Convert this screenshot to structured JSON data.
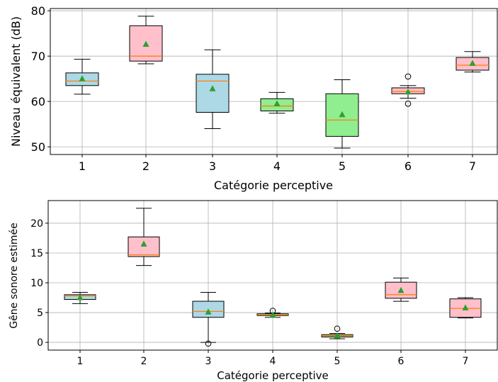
{
  "chart_data": [
    {
      "type": "box",
      "xlabel": "Catégorie perceptive",
      "ylabel": "Niveau équivalent (dB)",
      "categories": [
        "1",
        "2",
        "3",
        "4",
        "5",
        "6",
        "7"
      ],
      "ylim": [
        48.3,
        80.5
      ],
      "yticks": [
        50,
        60,
        70,
        80
      ],
      "ytick_labels": [
        "50",
        "60",
        "70",
        "80"
      ],
      "grid": true,
      "series": [
        {
          "whisker_low": 61.6,
          "q1": 63.5,
          "median": 64.5,
          "q3": 66.3,
          "whisker_high": 69.3,
          "mean": 65.0,
          "outliers": [],
          "fill": "#add8e6"
        },
        {
          "whisker_low": 68.3,
          "q1": 68.9,
          "median": 70.0,
          "q3": 76.7,
          "whisker_high": 78.8,
          "mean": 72.6,
          "outliers": [],
          "fill": "#ffc0cb"
        },
        {
          "whisker_low": 54.0,
          "q1": 57.6,
          "median": 64.5,
          "q3": 66.0,
          "whisker_high": 71.4,
          "mean": 62.8,
          "outliers": [],
          "fill": "#add8e6"
        },
        {
          "whisker_low": 57.4,
          "q1": 57.9,
          "median": 59.0,
          "q3": 60.6,
          "whisker_high": 62.0,
          "mean": 59.5,
          "outliers": [],
          "fill": "#90ee90"
        },
        {
          "whisker_low": 49.7,
          "q1": 52.3,
          "median": 55.9,
          "q3": 61.7,
          "whisker_high": 64.8,
          "mean": 57.1,
          "outliers": [],
          "fill": "#90ee90"
        },
        {
          "whisker_low": 60.7,
          "q1": 61.7,
          "median": 62.2,
          "q3": 63.0,
          "whisker_high": 63.5,
          "mean": 62.1,
          "outliers": [
            59.5,
            65.5
          ],
          "fill": "#ffc0cb"
        },
        {
          "whisker_low": 66.5,
          "q1": 66.9,
          "median": 68.0,
          "q3": 69.7,
          "whisker_high": 71.0,
          "mean": 68.4,
          "outliers": [],
          "fill": "#ffc0cb"
        }
      ]
    },
    {
      "type": "box",
      "xlabel": "Catégorie perceptive",
      "ylabel": "Gêne sonore estimée",
      "categories": [
        "1",
        "2",
        "3",
        "4",
        "5",
        "6",
        "7"
      ],
      "ylim": [
        -1.3,
        23.8
      ],
      "yticks": [
        0,
        5,
        10,
        15,
        20
      ],
      "ytick_labels": [
        "0",
        "5",
        "10",
        "15",
        "20"
      ],
      "grid": true,
      "series": [
        {
          "whisker_low": 6.5,
          "q1": 7.2,
          "median": 7.8,
          "q3": 8.0,
          "whisker_high": 8.4,
          "mean": 7.5,
          "outliers": [],
          "fill": "#add8e6"
        },
        {
          "whisker_low": 12.9,
          "q1": 14.4,
          "median": 14.7,
          "q3": 17.7,
          "whisker_high": 22.5,
          "mean": 16.5,
          "outliers": [],
          "fill": "#ffc0cb"
        },
        {
          "whisker_low": 0.0,
          "q1": 4.2,
          "median": 5.2,
          "q3": 6.9,
          "whisker_high": 8.4,
          "mean": 5.1,
          "outliers": [
            -0.2
          ],
          "fill": "#add8e6"
        },
        {
          "whisker_low": 4.2,
          "q1": 4.5,
          "median": 4.6,
          "q3": 4.8,
          "whisker_high": 4.9,
          "mean": 4.6,
          "outliers": [
            5.3
          ],
          "fill": "#90ee90"
        },
        {
          "whisker_low": 0.6,
          "q1": 0.9,
          "median": 1.1,
          "q3": 1.3,
          "whisker_high": 1.5,
          "mean": 1.1,
          "outliers": [
            2.3
          ],
          "fill": "#90ee90"
        },
        {
          "whisker_low": 6.9,
          "q1": 7.4,
          "median": 8.0,
          "q3": 10.1,
          "whisker_high": 10.8,
          "mean": 8.7,
          "outliers": [],
          "fill": "#ffc0cb"
        },
        {
          "whisker_low": 4.1,
          "q1": 4.2,
          "median": 5.7,
          "q3": 7.3,
          "whisker_high": 7.5,
          "mean": 5.8,
          "outliers": [],
          "fill": "#ffc0cb"
        }
      ]
    }
  ],
  "style": {
    "median_color": "#ff7f0e",
    "mean_marker_color": "#2ca02c",
    "grid_color": "#b0b0b0",
    "axis_color": "#000000"
  }
}
